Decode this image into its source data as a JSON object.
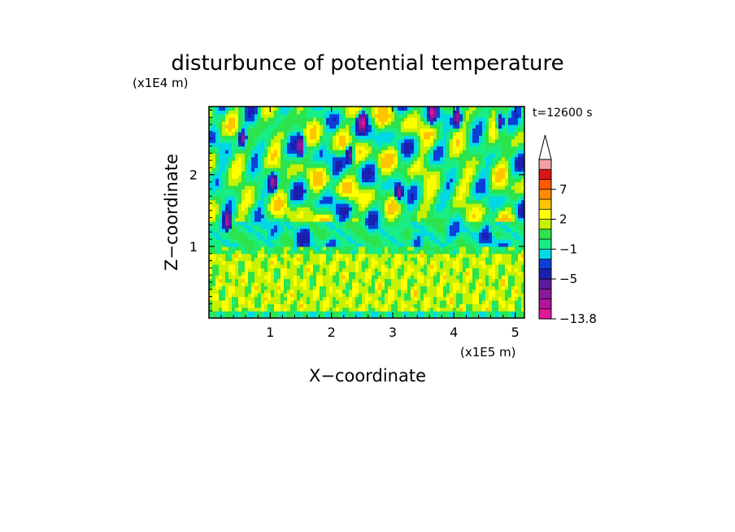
{
  "chart_data": {
    "type": "heatmap",
    "title": "disturbunce of potential temperature",
    "time_label": "t=12600 s",
    "xlabel": "X−coordinate",
    "ylabel": "Z−coordinate",
    "x_unit": "(x1E5 m)",
    "y_unit": "(x1E4 m)",
    "xlim": [
      0,
      5.15
    ],
    "ylim": [
      0,
      2.95
    ],
    "x_ticks": [
      "1",
      "2",
      "3",
      "4",
      "5"
    ],
    "y_ticks": [
      "1",
      "2"
    ],
    "colorbar": {
      "tick_labels": [
        "7",
        "2",
        "−1",
        "−5",
        "−13.8"
      ],
      "levels": [
        -13.8,
        -11,
        -9,
        -7,
        -5,
        -3,
        -2,
        -1,
        0,
        1,
        2,
        3,
        5,
        7,
        9,
        11
      ],
      "colors": [
        "#e3179b",
        "#b0159b",
        "#8a1a9c",
        "#5a1c9d",
        "#1c1fb0",
        "#0a3fd8",
        "#00d8e6",
        "#19ed85",
        "#2de34d",
        "#c8f000",
        "#ffff00",
        "#ffc400",
        "#ff8c00",
        "#ff5800",
        "#dc1414",
        "#f0a0a0"
      ],
      "extend_top": true
    },
    "field_summary": {
      "upper_layer_z": [
        1.0,
        2.95
      ],
      "upper_layer_pattern": "alternating tilted cells of green/cyan (negative) and yellow/orange (positive)",
      "lower_layer_z": [
        0,
        1.0
      ],
      "lower_layer_pattern": "mostly yellow with orange streaks and a green band near the ground",
      "minima_locations": [
        [
          0.55,
          2.5
        ],
        [
          1.05,
          1.9
        ],
        [
          1.5,
          2.4
        ],
        [
          2.5,
          2.75
        ],
        [
          2.3,
          2.3
        ],
        [
          3.65,
          2.85
        ],
        [
          4.05,
          2.8
        ],
        [
          4.75,
          2.75
        ],
        [
          3.1,
          1.75
        ],
        [
          0.3,
          1.35
        ]
      ]
    }
  }
}
